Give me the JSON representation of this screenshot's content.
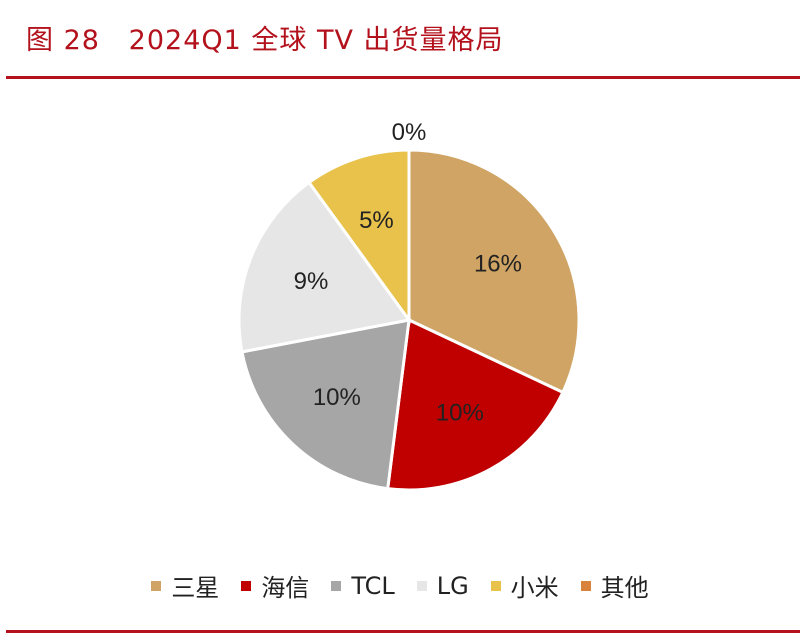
{
  "title": "图 28   2024Q1 全球 TV 出货量格局",
  "chart_data": {
    "type": "pie",
    "title": "",
    "categories": [
      "三星",
      "海信",
      "TCL",
      "LG",
      "小米",
      "其他"
    ],
    "values": [
      16,
      10,
      10,
      9,
      5,
      0
    ],
    "labels": [
      "16%",
      "10%",
      "10%",
      "9%",
      "5%",
      "0%"
    ],
    "colors": [
      "#cfa464",
      "#c00000",
      "#a6a6a6",
      "#e6e6e6",
      "#e9c24c",
      "#d9823b"
    ],
    "start_angle": "12 o'clock",
    "direction": "clockwise",
    "legend_position": "bottom"
  }
}
